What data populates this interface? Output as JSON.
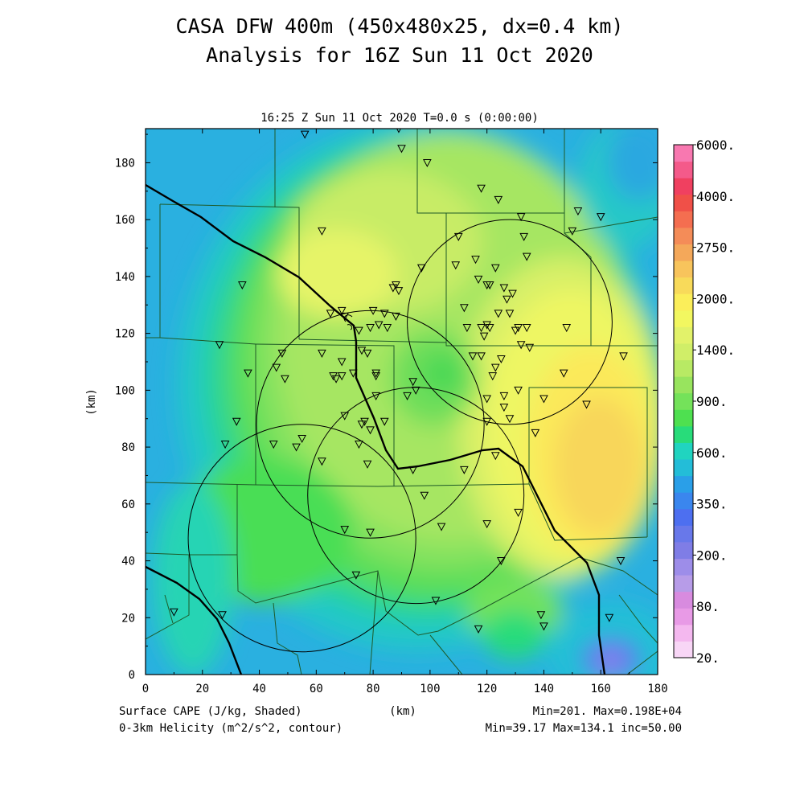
{
  "title_line1": "CASA DFW 400m (450x480x25, dx=0.4 km)",
  "title_line2": "Analysis for 16Z Sun 11 Oct 2020",
  "plot_subtitle": "16:25 Z Sun 11 Oct 2020   T=0.0 s (0:00:00)",
  "ylabel": "(km)",
  "xlabel": "(km)",
  "footer": {
    "left1": "Surface CAPE (J/kg, Shaded)",
    "left2": "0-3km Helicity (m^2/s^2, contour)",
    "right1": "Min=201. Max=0.198E+04",
    "right2": "Min=39.17 Max=134.1 inc=50.00"
  },
  "axes": {
    "x_ticks": [
      "0",
      "20",
      "40",
      "60",
      "80",
      "100",
      "120",
      "140",
      "160",
      "180"
    ],
    "y_ticks": [
      "0",
      "20",
      "40",
      "60",
      "80",
      "100",
      "120",
      "140",
      "160",
      "180"
    ],
    "xlim": [
      0,
      180
    ],
    "ylim": [
      0,
      192
    ]
  },
  "colorbar": {
    "labels": [
      "6000.",
      "4000.",
      "2750.",
      "2000.",
      "1400.",
      "900.",
      "600.",
      "350.",
      "200.",
      "80.",
      "20."
    ],
    "colors": [
      "#f8d6f6",
      "#f4b8ef",
      "#e89ae6",
      "#d88bdf",
      "#b79ce8",
      "#9d8de9",
      "#7f7de6",
      "#6878ea",
      "#4d6ff0",
      "#3a86ee",
      "#2a9fe8",
      "#23bdd8",
      "#20d4c0",
      "#28dc7a",
      "#4ee050",
      "#74e25a",
      "#98e45e",
      "#b8ea64",
      "#d0ee68",
      "#e2f26a",
      "#f2f760",
      "#fbee5a",
      "#f8da5a",
      "#f8c45c",
      "#f4a85a",
      "#f48c58",
      "#f46e50",
      "#f05048",
      "#f04060",
      "#f45a8a",
      "#f878b0"
    ]
  },
  "radars": [
    {
      "name": "radar-1",
      "cx": 128,
      "cy": 124,
      "r": 36
    },
    {
      "name": "radar-2",
      "cx": 79,
      "cy": 88,
      "r": 40
    },
    {
      "name": "radar-3",
      "cx": 95,
      "cy": 63,
      "r": 38
    },
    {
      "name": "radar-4",
      "cx": 55,
      "cy": 48,
      "r": 40
    }
  ],
  "stations": [
    [
      56,
      190
    ],
    [
      89,
      192
    ],
    [
      90,
      185
    ],
    [
      99,
      180
    ],
    [
      118,
      171
    ],
    [
      124,
      167
    ],
    [
      132,
      161
    ],
    [
      152,
      163
    ],
    [
      150,
      156
    ],
    [
      160,
      161
    ],
    [
      62,
      156
    ],
    [
      34,
      137
    ],
    [
      110,
      154
    ],
    [
      133,
      154
    ],
    [
      116,
      146
    ],
    [
      134,
      147
    ],
    [
      97,
      143
    ],
    [
      109,
      144
    ],
    [
      117,
      139
    ],
    [
      123,
      143
    ],
    [
      126,
      136
    ],
    [
      120,
      137
    ],
    [
      127,
      132
    ],
    [
      121,
      137
    ],
    [
      129,
      134
    ],
    [
      112,
      129
    ],
    [
      124,
      127
    ],
    [
      130,
      121
    ],
    [
      128,
      127
    ],
    [
      134,
      122
    ],
    [
      131,
      122
    ],
    [
      113,
      122
    ],
    [
      118,
      122
    ],
    [
      121,
      122
    ],
    [
      119,
      119
    ],
    [
      120,
      123
    ],
    [
      132,
      116
    ],
    [
      135,
      115
    ],
    [
      118,
      112
    ],
    [
      123,
      108
    ],
    [
      125,
      111
    ],
    [
      115,
      112
    ],
    [
      122,
      105
    ],
    [
      88,
      137
    ],
    [
      89,
      135
    ],
    [
      87,
      136
    ],
    [
      65,
      127
    ],
    [
      69,
      128
    ],
    [
      70,
      126
    ],
    [
      80,
      128
    ],
    [
      84,
      127
    ],
    [
      88,
      126
    ],
    [
      85,
      122
    ],
    [
      75,
      121
    ],
    [
      79,
      122
    ],
    [
      76,
      114
    ],
    [
      82,
      123
    ],
    [
      69,
      110
    ],
    [
      62,
      113
    ],
    [
      78,
      113
    ],
    [
      73,
      106
    ],
    [
      66,
      105
    ],
    [
      67,
      104
    ],
    [
      69,
      105
    ],
    [
      81,
      106
    ],
    [
      81,
      105
    ],
    [
      26,
      116
    ],
    [
      36,
      106
    ],
    [
      48,
      113
    ],
    [
      46,
      108
    ],
    [
      49,
      104
    ],
    [
      81,
      98
    ],
    [
      92,
      98
    ],
    [
      94,
      103
    ],
    [
      95,
      100
    ],
    [
      120,
      97
    ],
    [
      126,
      98
    ],
    [
      126,
      94
    ],
    [
      128,
      90
    ],
    [
      120,
      89
    ],
    [
      131,
      100
    ],
    [
      140,
      97
    ],
    [
      147,
      106
    ],
    [
      148,
      122
    ],
    [
      155,
      95
    ],
    [
      168,
      112
    ],
    [
      32,
      89
    ],
    [
      28,
      81
    ],
    [
      45,
      81
    ],
    [
      53,
      80
    ],
    [
      55,
      83
    ],
    [
      62,
      75
    ],
    [
      70,
      91
    ],
    [
      77,
      89
    ],
    [
      79,
      86
    ],
    [
      76,
      88
    ],
    [
      84,
      89
    ],
    [
      75,
      81
    ],
    [
      78,
      74
    ],
    [
      94,
      72
    ],
    [
      112,
      72
    ],
    [
      123,
      77
    ],
    [
      137,
      85
    ],
    [
      98,
      63
    ],
    [
      131,
      57
    ],
    [
      120,
      53
    ],
    [
      104,
      52
    ],
    [
      70,
      51
    ],
    [
      79,
      50
    ],
    [
      125,
      40
    ],
    [
      167,
      40
    ],
    [
      74,
      35
    ],
    [
      102,
      26
    ],
    [
      10,
      22
    ],
    [
      27,
      21
    ],
    [
      117,
      16
    ],
    [
      139,
      21
    ],
    [
      140,
      17
    ],
    [
      163,
      20
    ]
  ]
}
